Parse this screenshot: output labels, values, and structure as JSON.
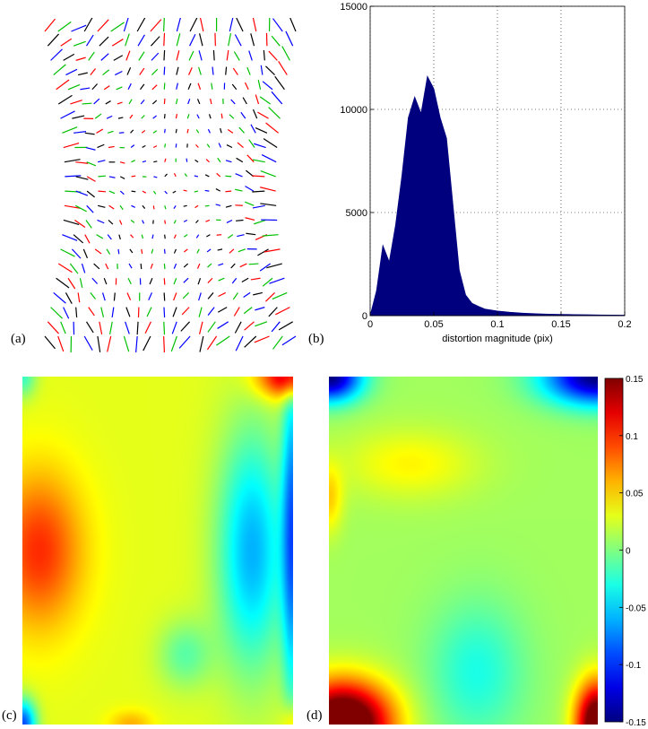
{
  "panels": {
    "a": {
      "label": "(a)"
    },
    "b": {
      "label": "(b)"
    },
    "c": {
      "label": "(c)"
    },
    "d": {
      "label": "(d)"
    }
  },
  "chart_data": [
    {
      "id": "a",
      "type": "quiver",
      "description_visible": "distortion vector field, arrows colored red, green, blue, black",
      "colors": [
        "#ff0000",
        "#00c000",
        "#0000ff",
        "#000000"
      ]
    },
    {
      "id": "b",
      "type": "bar",
      "xlabel": "distortion magnitude (pix)",
      "ylabel": "",
      "xlim": [
        0,
        0.2
      ],
      "ylim": [
        0,
        15000
      ],
      "xticks": [
        "0",
        "0.05",
        "0.1",
        "0.15",
        "0.2"
      ],
      "yticks": [
        "0",
        "5000",
        "10000",
        "15000"
      ],
      "grid": true,
      "color": "#00007f",
      "x": [
        0.0,
        0.005,
        0.01,
        0.015,
        0.02,
        0.025,
        0.03,
        0.035,
        0.04,
        0.045,
        0.05,
        0.055,
        0.06,
        0.065,
        0.07,
        0.075,
        0.08,
        0.085,
        0.09,
        0.1,
        0.11,
        0.12,
        0.13,
        0.14,
        0.15,
        0.16,
        0.17,
        0.18,
        0.19,
        0.2
      ],
      "values": [
        0,
        1200,
        3400,
        2600,
        4400,
        6800,
        9600,
        10600,
        9800,
        11600,
        11000,
        9600,
        8600,
        5400,
        2200,
        1000,
        600,
        450,
        320,
        220,
        160,
        120,
        90,
        70,
        60,
        50,
        40,
        30,
        25,
        20
      ]
    },
    {
      "id": "c",
      "type": "heatmap",
      "colormap": "jet",
      "zlim": [
        -0.15,
        0.15
      ]
    },
    {
      "id": "d",
      "type": "heatmap",
      "colormap": "jet",
      "zlim": [
        -0.15,
        0.15
      ],
      "colorbar_ticks": [
        "0.15",
        "0.1",
        "0.05",
        "0",
        "-0.05",
        "-0.1",
        "-0.15"
      ]
    }
  ]
}
